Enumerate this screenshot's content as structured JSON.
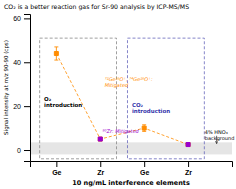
{
  "chart_data": {
    "type": "scatter",
    "title": "CO₂ is a better reaction gas for Sr-90 analysis by ICP-MS/MS",
    "xlabel": "10 ng/mL interference elements",
    "ylabel": "Signal intensity at m/z 90-90 (cps)",
    "xlim": [
      0.4,
      5.0
    ],
    "xticks": [
      {
        "value": 1,
        "label": "Ge"
      },
      {
        "value": 2,
        "label": "Zr"
      },
      {
        "value": 3,
        "label": "Ge"
      },
      {
        "value": 4,
        "label": "Zr"
      }
    ],
    "ylim": [
      -5,
      62
    ],
    "yticks": [
      0,
      20,
      40,
      60
    ],
    "grid": false,
    "series": [
      {
        "color": "#FF8C00",
        "marker": "square",
        "line_style": "dashed",
        "x": [
          1,
          2,
          3,
          4
        ],
        "values": [
          44,
          5,
          10,
          2.5
        ],
        "errors": [
          3,
          0.5,
          1.5,
          0.3
        ]
      },
      {
        "color": "#9900CC",
        "marker": "square",
        "line_style": "none",
        "x": [
          2,
          4
        ],
        "values": [
          5,
          2.5
        ],
        "errors": [
          0.5,
          0.3
        ]
      }
    ],
    "annotations": [
      {
        "text": "⁷²Ge¹⁶O⁺, ⁷⁴Ge¹⁶O⁺:\nMitigated",
        "x": 2.1,
        "y": 31,
        "color": "#FF8C00"
      },
      {
        "text": "⁹⁰Zr: Mitigated",
        "x": 2.05,
        "y": 8.5,
        "color": "#9900CC"
      },
      {
        "text": "O₂\nintroduction",
        "x": 0.72,
        "y": 22,
        "color": "#000000"
      },
      {
        "text": "CO₂\nintroduction",
        "x": 2.72,
        "y": 19,
        "color": "#3333aa"
      },
      {
        "text": "4% HNO₃\nbackground",
        "x": 4.38,
        "y": 9,
        "color": "#000000"
      }
    ],
    "bands": [
      {
        "y0": -2,
        "y1": 3.5
      }
    ],
    "boxes": [
      {
        "x0": 0.62,
        "x1": 2.37,
        "y0": -4,
        "y1": 51
      },
      {
        "x0": 2.62,
        "x1": 4.37,
        "y0": -4,
        "y1": 51
      }
    ],
    "arrows": [
      {
        "x": 4.65,
        "y0": 6.5,
        "y1": 3.0
      }
    ]
  }
}
